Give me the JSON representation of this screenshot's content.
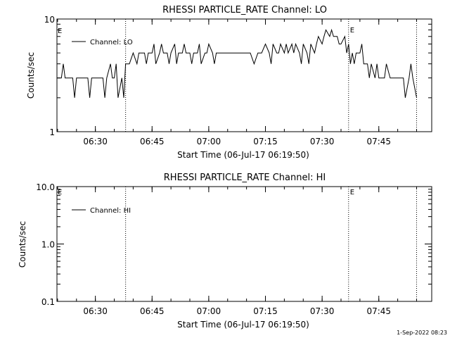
{
  "footer": {
    "timestamp": "1-Sep-2022 08:23"
  },
  "chart_data": [
    {
      "type": "line",
      "title": "RHESSI PARTICLE_RATE Channel: LO",
      "xlabel": "Start Time (06-Jul-17 06:19:50)",
      "ylabel": "Counts/sec",
      "yscale": "log",
      "ylim": [
        1,
        10
      ],
      "xlim": [
        "06:19:50",
        "07:59:00"
      ],
      "x_ticks": [
        "06:30",
        "06:45",
        "07:00",
        "07:15",
        "07:30",
        "07:45"
      ],
      "y_ticks": [
        "1",
        "10"
      ],
      "legend": {
        "placement": "top-left",
        "entries": [
          "Channel: LO"
        ]
      },
      "event_markers": [
        {
          "time": "06:38:00",
          "label": ""
        },
        {
          "time": "07:37:00",
          "label": "E"
        },
        {
          "time": "07:55:00",
          "label": ""
        }
      ],
      "start_marker_label": "E",
      "series": [
        {
          "name": "Channel: LO",
          "x": [
            "06:19:50",
            "06:21:00",
            "06:21:30",
            "06:22:00",
            "06:23:00",
            "06:24:00",
            "06:24:30",
            "06:25:00",
            "06:26:00",
            "06:27:00",
            "06:28:00",
            "06:28:30",
            "06:29:00",
            "06:30:00",
            "06:31:00",
            "06:32:00",
            "06:32:30",
            "06:33:00",
            "06:34:00",
            "06:34:30",
            "06:35:00",
            "06:35:30",
            "06:36:00",
            "06:37:00",
            "06:37:30",
            "06:38:00",
            "06:38:30",
            "06:39:00",
            "06:40:00",
            "06:41:00",
            "06:41:30",
            "06:42:00",
            "06:43:00",
            "06:43:30",
            "06:44:00",
            "06:45:00",
            "06:45:30",
            "06:46:00",
            "06:47:00",
            "06:47:30",
            "06:48:00",
            "06:49:00",
            "06:49:30",
            "06:50:00",
            "06:51:00",
            "06:51:30",
            "06:52:00",
            "06:53:00",
            "06:53:30",
            "06:54:00",
            "06:55:00",
            "06:55:30",
            "06:56:00",
            "06:57:00",
            "06:57:30",
            "06:58:00",
            "06:59:00",
            "06:59:30",
            "07:00:00",
            "07:01:00",
            "07:01:30",
            "07:02:00",
            "07:03:00",
            "07:04:00",
            "07:05:00",
            "07:06:00",
            "07:07:00",
            "07:08:00",
            "07:09:00",
            "07:10:00",
            "07:11:00",
            "07:12:00",
            "07:13:00",
            "07:14:00",
            "07:15:00",
            "07:16:00",
            "07:16:30",
            "07:17:00",
            "07:18:00",
            "07:18:30",
            "07:19:00",
            "07:20:00",
            "07:20:30",
            "07:21:00",
            "07:22:00",
            "07:22:30",
            "07:23:00",
            "07:24:00",
            "07:24:30",
            "07:25:00",
            "07:26:00",
            "07:26:30",
            "07:27:00",
            "07:28:00",
            "07:28:30",
            "07:29:00",
            "07:30:00",
            "07:30:30",
            "07:31:00",
            "07:32:00",
            "07:32:30",
            "07:33:00",
            "07:34:00",
            "07:34:30",
            "07:35:00",
            "07:36:00",
            "07:36:30",
            "07:37:00",
            "07:37:30",
            "07:38:00",
            "07:38:30",
            "07:39:00",
            "07:40:00",
            "07:40:30",
            "07:41:00",
            "07:42:00",
            "07:42:30",
            "07:43:00",
            "07:44:00",
            "07:44:30",
            "07:45:00",
            "07:46:00",
            "07:46:30",
            "07:47:00",
            "07:48:00",
            "07:48:30",
            "07:49:00",
            "07:50:00",
            "07:51:00",
            "07:51:30",
            "07:52:00",
            "07:53:00",
            "07:53:30",
            "07:54:00",
            "07:55:00"
          ],
          "values": [
            3,
            3,
            4,
            3,
            3,
            3,
            2,
            3,
            3,
            3,
            3,
            2,
            3,
            3,
            3,
            3,
            2,
            3,
            4,
            3,
            3,
            4,
            2,
            3,
            2,
            4,
            4,
            4,
            5,
            4,
            5,
            5,
            5,
            4,
            5,
            5,
            6,
            4,
            5,
            6,
            5,
            5,
            4,
            5,
            6,
            4,
            5,
            5,
            6,
            5,
            5,
            4,
            5,
            5,
            6,
            4,
            5,
            5,
            6,
            5,
            4,
            5,
            5,
            5,
            5,
            5,
            5,
            5,
            5,
            5,
            5,
            4,
            5,
            5,
            6,
            5,
            4,
            6,
            5,
            5,
            6,
            5,
            6,
            5,
            6,
            5,
            6,
            5,
            4,
            6,
            5,
            4,
            6,
            5,
            6,
            7,
            6,
            7,
            8,
            7,
            8,
            7,
            7,
            6,
            6,
            7,
            5,
            6,
            4,
            5,
            4,
            5,
            5,
            6,
            4,
            4,
            3,
            4,
            3,
            4,
            3,
            3,
            3,
            4,
            3,
            3,
            3,
            3,
            3,
            3,
            2,
            3,
            4,
            3,
            2
          ]
        }
      ]
    },
    {
      "type": "line",
      "title": "RHESSI PARTICLE_RATE Channel: HI",
      "xlabel": "Start Time (06-Jul-17 06:19:50)",
      "ylabel": "Counts/sec",
      "yscale": "log",
      "ylim": [
        0.1,
        10
      ],
      "xlim": [
        "06:19:50",
        "07:59:00"
      ],
      "x_ticks": [
        "06:30",
        "06:45",
        "07:00",
        "07:15",
        "07:30",
        "07:45"
      ],
      "y_ticks": [
        "0.1",
        "1.0",
        "10.0"
      ],
      "legend": {
        "placement": "top-left",
        "entries": [
          "Channel: HI"
        ]
      },
      "event_markers": [
        {
          "time": "06:38:00",
          "label": ""
        },
        {
          "time": "07:37:00",
          "label": "E"
        },
        {
          "time": "07:55:00",
          "label": ""
        }
      ],
      "start_marker_label": "E",
      "series": [
        {
          "name": "Channel: HI",
          "x": [],
          "values": []
        }
      ]
    }
  ]
}
